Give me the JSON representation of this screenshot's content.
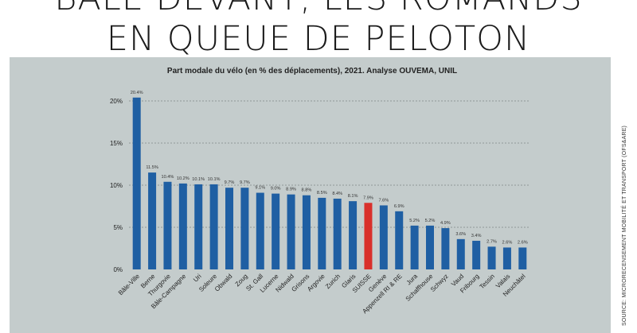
{
  "headline": {
    "line1": "BÂLE DEVANT, LES ROMANDS",
    "line2": "EN QUEUE DE PELOTON"
  },
  "source": "SOURCE: MICRORECENSEMENT MOBILITÉ ET TRANSPORT (OFS&ARE)",
  "colors": {
    "bar": "#1f5fa3",
    "highlight": "#d9302b",
    "panel": "#c4cccc"
  },
  "chart_data": {
    "type": "bar",
    "title": "Part modale du vélo (en % des déplacements), 2021. Analyse OUVEMA, UNIL",
    "xlabel": "",
    "ylabel": "",
    "ylim": [
      0,
      20
    ],
    "yticks": [
      0,
      5,
      10,
      15,
      20
    ],
    "ytick_labels": [
      "0%",
      "5%",
      "10%",
      "15%",
      "20%"
    ],
    "grid": true,
    "highlight": "SUISSE",
    "categories": [
      "Bâle-Ville",
      "Berne",
      "Thurgovie",
      "Bâle-Campagne",
      "Uri",
      "Soleure",
      "Obwald",
      "Zoug",
      "St. Gall",
      "Lucerne",
      "Nidwald",
      "Grisons",
      "Argovie",
      "Zurich",
      "Glaris",
      "SUISSE",
      "Genève",
      "Appenzell RI & RE",
      "Jura",
      "Schaffhouse",
      "Schwyz",
      "Vaud",
      "Fribourg",
      "Tessin",
      "Valais",
      "Neuchâtel"
    ],
    "values": [
      20.4,
      11.5,
      10.4,
      10.2,
      10.1,
      10.1,
      9.7,
      9.7,
      9.1,
      9.0,
      8.9,
      8.8,
      8.5,
      8.4,
      8.1,
      7.9,
      7.6,
      6.9,
      5.2,
      5.2,
      4.9,
      3.6,
      3.4,
      2.7,
      2.6,
      2.6
    ],
    "value_labels": [
      "20.4%",
      "11.5%",
      "10.4%",
      "10.2%",
      "10.1%",
      "10.1%",
      "9.7%",
      "9.7%",
      "9.1%",
      "9.0%",
      "8.9%",
      "8.8%",
      "8.5%",
      "8.4%",
      "8.1%",
      "7.9%",
      "7.6%",
      "6.9%",
      "5.2%",
      "5.2%",
      "4.9%",
      "3.6%",
      "3.4%",
      "2.7%",
      "2.6%",
      "2.6%"
    ]
  }
}
